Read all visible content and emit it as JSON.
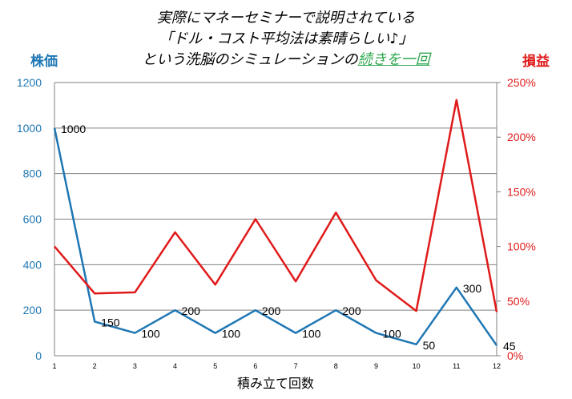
{
  "title": {
    "line1": "実際にマネーセミナーで説明されている",
    "line2": "「ドル・コスト平均法は素晴らしい♪」",
    "line3_prefix": "という洗脳のシミュレーションの",
    "line3_highlight": "続きを一回"
  },
  "colors": {
    "price": "#1f77b4",
    "gain": "#e01a1a",
    "grid": "#808080",
    "highlight": "#2fa84f"
  },
  "chart_data": {
    "type": "line",
    "x": [
      1,
      2,
      3,
      4,
      5,
      6,
      7,
      8,
      9,
      10,
      11,
      12
    ],
    "xlabel": "積み立て回数",
    "series": [
      {
        "name": "株価",
        "axis": "left",
        "values": [
          1000,
          150,
          100,
          200,
          100,
          200,
          100,
          200,
          100,
          50,
          300,
          45
        ]
      },
      {
        "name": "損益",
        "axis": "right",
        "values": [
          1.0,
          0.57,
          0.58,
          1.13,
          0.65,
          1.25,
          0.68,
          1.31,
          0.69,
          0.41,
          2.34,
          0.4
        ]
      }
    ],
    "ylabel_left": "株価",
    "ylabel_right": "損益",
    "ylim_left": [
      0,
      1200
    ],
    "ylim_right": [
      0,
      2.5
    ],
    "yticks_left": [
      "0",
      "200",
      "400",
      "600",
      "800",
      "1000",
      "1200"
    ],
    "yticks_right": [
      "0%",
      "50%",
      "100%",
      "150%",
      "200%",
      "250%"
    ],
    "data_labels": [
      "1000",
      "150",
      "100",
      "200",
      "100",
      "200",
      "100",
      "200",
      "100",
      "50",
      "300",
      "45"
    ],
    "grid": true
  }
}
